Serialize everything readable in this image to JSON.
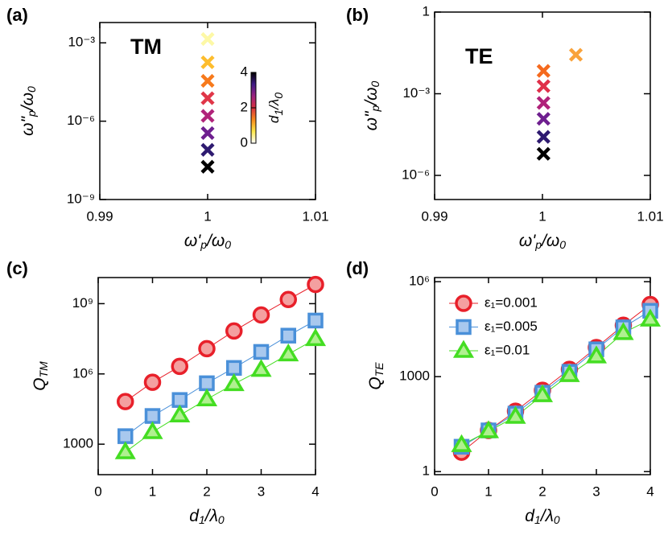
{
  "chart_data": [
    {
      "type": "scatter",
      "panel": "(a)",
      "annotation": "TM",
      "x": [
        1,
        1,
        1,
        1,
        1,
        1,
        1,
        1
      ],
      "values": [
        0.0014,
        0.00018,
        3.5e-05,
        7.6e-06,
        1.6e-06,
        3.5e-07,
        8e-08,
        1.8e-08
      ],
      "colors": [
        "#fdf8a6",
        "#fdbd2e",
        "#f77a1c",
        "#e03648",
        "#b0237a",
        "#6e1f8f",
        "#2e1a70",
        "#000000"
      ],
      "xlim": [
        0.99,
        1.01
      ],
      "xticks": [
        0.99,
        1,
        1.01
      ],
      "ylim": [
        1e-09,
        0.006
      ],
      "ylog": true,
      "yticks": [
        {
          "value": 1e-09,
          "label": "10⁻⁹"
        },
        {
          "value": 1e-06,
          "label": "10⁻⁶"
        },
        {
          "value": 0.001,
          "label": "10⁻³"
        }
      ],
      "xlabel": [
        {
          "text": "ω'"
        },
        {
          "sub": "p"
        },
        {
          "text": "/ω"
        },
        {
          "sub": "0"
        }
      ],
      "ylabel": [
        {
          "text": "ω\""
        },
        {
          "sub": "p"
        },
        {
          "text": "/ω"
        },
        {
          "sub": "0"
        }
      ],
      "colorbar": {
        "label": [
          {
            "text": "d"
          },
          {
            "sub": "1"
          },
          {
            "text": "/λ"
          },
          {
            "sub": "0"
          }
        ],
        "lim": [
          0,
          4
        ],
        "ticks": [
          0,
          2,
          4
        ],
        "colors": [
          "#ffffff",
          "#fde84a",
          "#f88a1c",
          "#d8303f",
          "#9c2381",
          "#3f1b86",
          "#000000"
        ]
      }
    },
    {
      "type": "scatter",
      "panel": "(b)",
      "annotation": "TE",
      "x": [
        1.0031,
        1.0001,
        1.0001,
        1.0001,
        1.0001,
        1.0001,
        1.0001
      ],
      "values": [
        0.027,
        0.0069,
        0.0019,
        0.00046,
        0.00012,
        2.6e-05,
        6.2e-06
      ],
      "colors": [
        "#f9a23a",
        "#f56a1e",
        "#e0304a",
        "#b0237a",
        "#6e1f8f",
        "#2e1a70",
        "#000000"
      ],
      "xlim": [
        0.99,
        1.01
      ],
      "xticks": [
        0.99,
        1,
        1.01
      ],
      "ylim": [
        1.3e-07,
        1
      ],
      "ylog": true,
      "yticks": [
        {
          "value": 1e-06,
          "label": "10⁻⁶"
        },
        {
          "value": 0.001,
          "label": "10⁻³"
        },
        1
      ],
      "xlabel": [
        {
          "text": "ω'"
        },
        {
          "sub": "p"
        },
        {
          "text": "/ω"
        },
        {
          "sub": "0"
        }
      ],
      "ylabel": [
        {
          "text": "ω\""
        },
        {
          "sub": "p"
        },
        {
          "text": "/ω"
        },
        {
          "sub": "0"
        }
      ]
    },
    {
      "type": "line",
      "panel": "(c)",
      "x": [
        0.5,
        1,
        1.5,
        2,
        2.5,
        3,
        3.5,
        4
      ],
      "series": [
        {
          "name": "ε₁=0.001",
          "color": "#e8202a",
          "fill": "#f4a0a0",
          "marker": "circle",
          "values": [
            66000,
            440000,
            2100000,
            12000000,
            68000000,
            330000000,
            1500000000,
            6600000000
          ]
        },
        {
          "name": "ε₁=0.005",
          "color": "#4a90d9",
          "fill": "#a8c8ee",
          "marker": "square",
          "values": [
            2200,
            16000,
            77000,
            400000,
            1800000,
            8700000,
            43000000,
            190000000
          ]
        },
        {
          "name": "ε₁=0.01",
          "color": "#44dd22",
          "fill": "#b0f090",
          "marker": "triangle",
          "values": [
            460,
            3300,
            17000,
            83000,
            370000,
            1500000,
            6900000,
            31000000
          ]
        }
      ],
      "xlim": [
        0,
        4
      ],
      "xticks": [
        0,
        1,
        2,
        3,
        4
      ],
      "ylim": [
        50,
        13000000000
      ],
      "ylog": true,
      "yticks": [
        1000,
        {
          "value": 1000000,
          "label": "10⁶"
        },
        {
          "value": 1000000000,
          "label": "10⁹"
        }
      ],
      "xlabel": [
        {
          "text": "d"
        },
        {
          "sub": "1"
        },
        {
          "text": "/λ"
        },
        {
          "sub": "0"
        }
      ],
      "ylabel": [
        {
          "text": "Q"
        },
        {
          "sub": "TM"
        }
      ]
    },
    {
      "type": "line",
      "panel": "(d)",
      "legend": "upper left",
      "x": [
        0.5,
        1,
        1.5,
        2,
        2.5,
        3,
        3.5,
        4
      ],
      "series": [
        {
          "name": "ε₁=0.001",
          "color": "#e8202a",
          "fill": "#f4a0a0",
          "marker": "circle",
          "values": [
            4.1,
            20,
            81,
            370,
            1700,
            8300,
            42000,
            190000
          ]
        },
        {
          "name": "ε₁=0.005",
          "color": "#4a90d9",
          "fill": "#a8c8ee",
          "marker": "square",
          "values": [
            6.1,
            20,
            68,
            310,
            1420,
            7300,
            36000,
            120000
          ]
        },
        {
          "name": "ε₁=0.01",
          "color": "#44dd22",
          "fill": "#b0f090",
          "marker": "triangle",
          "values": [
            6.9,
            19,
            54,
            260,
            1130,
            4400,
            24000,
            64000
          ]
        }
      ],
      "xlim": [
        0,
        4
      ],
      "xticks": [
        0,
        1,
        2,
        3,
        4
      ],
      "ylim": [
        0.8,
        1350000
      ],
      "ylog": true,
      "yticks": [
        1,
        1000,
        {
          "value": 1000000,
          "label": "10⁶"
        }
      ],
      "xlabel": [
        {
          "text": "d"
        },
        {
          "sub": "1"
        },
        {
          "text": "/λ"
        },
        {
          "sub": "0"
        }
      ],
      "ylabel": [
        {
          "text": "Q"
        },
        {
          "sub": "TE"
        }
      ]
    }
  ]
}
